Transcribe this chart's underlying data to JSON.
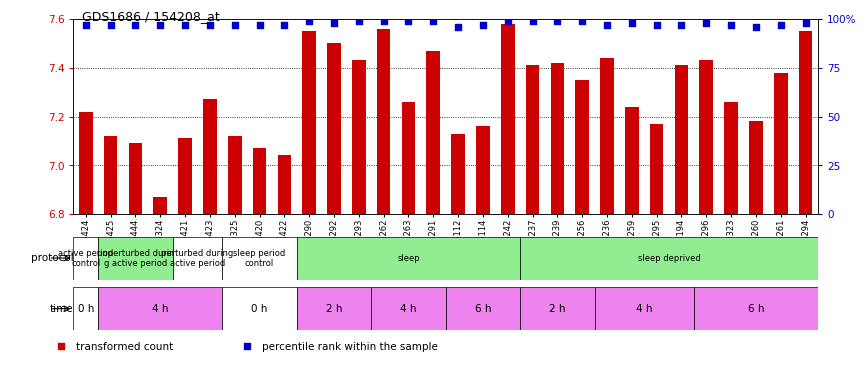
{
  "title": "GDS1686 / 154208_at",
  "samples": [
    "GSM95424",
    "GSM95425",
    "GSM95444",
    "GSM95324",
    "GSM95421",
    "GSM95423",
    "GSM95325",
    "GSM95420",
    "GSM95422",
    "GSM95290",
    "GSM95292",
    "GSM95293",
    "GSM95262",
    "GSM95263",
    "GSM95291",
    "GSM95112",
    "GSM95114",
    "GSM95242",
    "GSM95237",
    "GSM95239",
    "GSM95256",
    "GSM95236",
    "GSM95259",
    "GSM95295",
    "GSM95194",
    "GSM95296",
    "GSM95323",
    "GSM95260",
    "GSM95261",
    "GSM95294"
  ],
  "bar_values": [
    7.22,
    7.12,
    7.09,
    6.87,
    7.11,
    7.27,
    7.12,
    7.07,
    7.04,
    7.55,
    7.5,
    7.43,
    7.56,
    7.26,
    7.47,
    7.13,
    7.16,
    7.58,
    7.41,
    7.42,
    7.35,
    7.44,
    7.24,
    7.17,
    7.41,
    7.43,
    7.26,
    7.18,
    7.38,
    7.55
  ],
  "percentile_values": [
    97,
    97,
    97,
    97,
    97,
    97,
    97,
    97,
    97,
    99,
    98,
    99,
    99,
    99,
    99,
    96,
    97,
    99,
    99,
    99,
    99,
    97,
    98,
    97,
    97,
    98,
    97,
    96,
    97,
    98
  ],
  "bar_color": "#cc0000",
  "percentile_color": "#0000cc",
  "ylim_left": [
    6.8,
    7.6
  ],
  "ylim_right": [
    0,
    100
  ],
  "yticks_left": [
    6.8,
    7.0,
    7.2,
    7.4,
    7.6
  ],
  "yticks_right": [
    0,
    25,
    50,
    75,
    100
  ],
  "ytick_labels_right": [
    "0",
    "25",
    "50",
    "75",
    "100%"
  ],
  "protocol_labels": [
    {
      "text": "active period\ncontrol",
      "start": 0,
      "end": 1,
      "color": "#ffffff"
    },
    {
      "text": "unperturbed durin\ng active period",
      "start": 1,
      "end": 4,
      "color": "#90ee90"
    },
    {
      "text": "perturbed during\nactive period",
      "start": 4,
      "end": 6,
      "color": "#ffffff"
    },
    {
      "text": "sleep period\ncontrol",
      "start": 6,
      "end": 9,
      "color": "#ffffff"
    },
    {
      "text": "sleep",
      "start": 9,
      "end": 18,
      "color": "#90ee90"
    },
    {
      "text": "sleep deprived",
      "start": 18,
      "end": 30,
      "color": "#90ee90"
    }
  ],
  "time_labels": [
    {
      "text": "0 h",
      "start": 0,
      "end": 1,
      "color": "#ffffff"
    },
    {
      "text": "4 h",
      "start": 1,
      "end": 6,
      "color": "#ee82ee"
    },
    {
      "text": "0 h",
      "start": 6,
      "end": 9,
      "color": "#ffffff"
    },
    {
      "text": "2 h",
      "start": 9,
      "end": 12,
      "color": "#ee82ee"
    },
    {
      "text": "4 h",
      "start": 12,
      "end": 15,
      "color": "#ee82ee"
    },
    {
      "text": "6 h",
      "start": 15,
      "end": 18,
      "color": "#ee82ee"
    },
    {
      "text": "2 h",
      "start": 18,
      "end": 21,
      "color": "#ee82ee"
    },
    {
      "text": "4 h",
      "start": 21,
      "end": 25,
      "color": "#ee82ee"
    },
    {
      "text": "6 h",
      "start": 25,
      "end": 30,
      "color": "#ee82ee"
    }
  ],
  "legend_items": [
    {
      "color": "#cc0000",
      "marker": "s",
      "label": "transformed count"
    },
    {
      "color": "#0000cc",
      "marker": "s",
      "label": "percentile rank within the sample"
    }
  ],
  "background_color": "#ffffff",
  "protocol_label": "protocol",
  "time_label": "time"
}
